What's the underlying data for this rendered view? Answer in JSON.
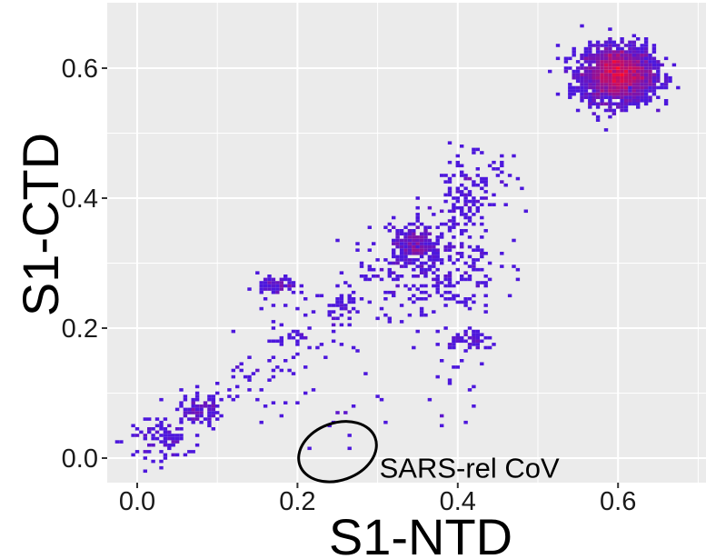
{
  "chart_data": {
    "type": "heatmap",
    "title": "",
    "xlabel": "S1-NTD",
    "ylabel": "S1-CTD",
    "xlim": [
      -0.035,
      0.71
    ],
    "ylim": [
      -0.036,
      0.692
    ],
    "x_ticks": [
      0.0,
      0.2,
      0.4,
      0.6
    ],
    "x_tick_labels": [
      "0.0",
      "0.2",
      "0.4",
      "0.6"
    ],
    "y_ticks": [
      0.0,
      0.2,
      0.4,
      0.6
    ],
    "y_tick_labels": [
      "0.0",
      "0.2",
      "0.4",
      "0.6"
    ],
    "grid": true,
    "legend": "none",
    "bin_size": 0.005,
    "colors": {
      "panel_background": "#ebebeb",
      "grid_major": "#ffffff",
      "low_density": "#2a1aff",
      "high_density": "#ff0a2a",
      "annotation": "#000000"
    },
    "clusters": [
      {
        "center": [
          0.6,
          0.59
        ],
        "spread": [
          0.022,
          0.021
        ],
        "count": 2200,
        "peak_density": 1.0
      },
      {
        "center": [
          0.345,
          0.33
        ],
        "spread": [
          0.012,
          0.012
        ],
        "count": 180,
        "peak_density": 0.55
      },
      {
        "center": [
          0.37,
          0.3
        ],
        "spread": [
          0.04,
          0.04
        ],
        "count": 260,
        "peak_density": 0.2
      },
      {
        "center": [
          0.41,
          0.41
        ],
        "spread": [
          0.015,
          0.035
        ],
        "count": 70,
        "peak_density": 0.15
      },
      {
        "center": [
          0.175,
          0.265
        ],
        "spread": [
          0.012,
          0.008
        ],
        "count": 70,
        "peak_density": 0.2
      },
      {
        "center": [
          0.26,
          0.23
        ],
        "spread": [
          0.01,
          0.01
        ],
        "count": 25,
        "peak_density": 0.15
      },
      {
        "center": [
          0.42,
          0.18
        ],
        "spread": [
          0.015,
          0.007
        ],
        "count": 45,
        "peak_density": 0.15
      },
      {
        "center": [
          0.08,
          0.07
        ],
        "spread": [
          0.015,
          0.012
        ],
        "count": 70,
        "peak_density": 0.2
      },
      {
        "center": [
          0.03,
          0.03
        ],
        "spread": [
          0.02,
          0.015
        ],
        "count": 60,
        "peak_density": 0.15
      },
      {
        "center": [
          0.5,
          0.16
        ],
        "spread": [
          0.012,
          0.01
        ],
        "count": 0,
        "peak_density": 0.0
      }
    ],
    "annotations": [
      {
        "text": "SARS-rel CoV",
        "x": 0.3,
        "y": -0.012
      }
    ],
    "highlight_ellipse": {
      "center": [
        0.25,
        0.01
      ],
      "radius_x": 0.05,
      "radius_y": 0.044,
      "tilt_deg": -20
    }
  }
}
